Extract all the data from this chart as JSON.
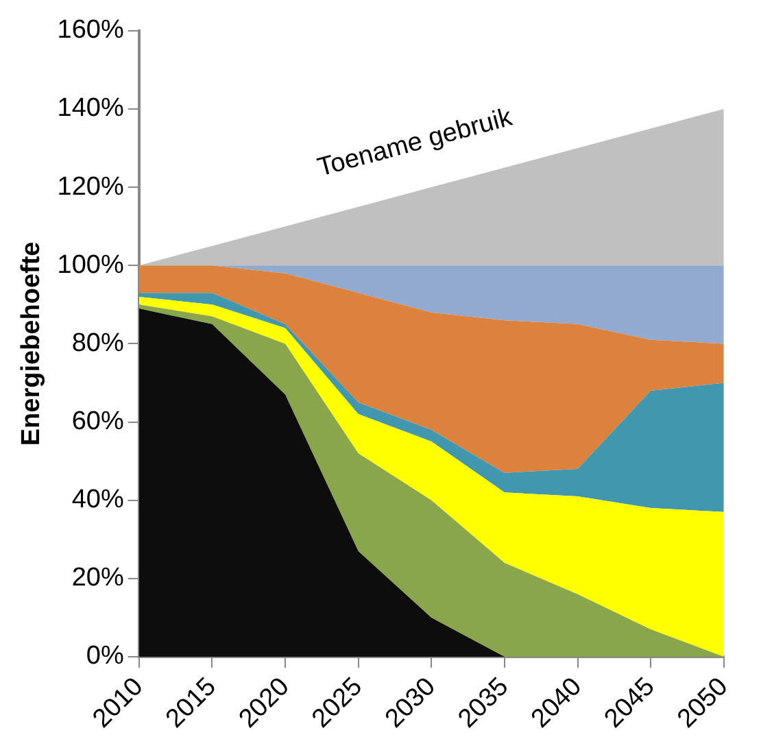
{
  "chart_data": {
    "type": "area",
    "stacked": true,
    "ylabel": "Energiebehoefte",
    "categories": [
      "2010",
      "2015",
      "2020",
      "2025",
      "2030",
      "2035",
      "2040",
      "2045",
      "2050"
    ],
    "series": [
      {
        "color": "#0d0d0d",
        "values": [
          89,
          85,
          67,
          27,
          10,
          0,
          0,
          0,
          0
        ]
      },
      {
        "color": "#8aa64c",
        "values": [
          1,
          2,
          13,
          25,
          30,
          24,
          16,
          7,
          0
        ]
      },
      {
        "color": "#ffff00",
        "values": [
          2,
          3,
          4,
          10,
          15,
          18,
          25,
          31,
          37
        ]
      },
      {
        "color": "#4198ae",
        "values": [
          1,
          3,
          1,
          3,
          3,
          5,
          7,
          30,
          33
        ]
      },
      {
        "color": "#dc823c",
        "values": [
          7,
          7,
          13,
          28,
          30,
          39,
          37,
          13,
          10
        ]
      },
      {
        "color": "#92a9d0",
        "values": [
          0,
          0,
          2,
          7,
          12,
          14,
          15,
          19,
          20
        ]
      },
      {
        "color": "#c0c0c0",
        "values": [
          0,
          5,
          10,
          15,
          20,
          25,
          30,
          35,
          40
        ]
      }
    ],
    "ylim": [
      0,
      160
    ],
    "yticks": [
      {
        "value": 0,
        "label": "0%"
      },
      {
        "value": 20,
        "label": "20%"
      },
      {
        "value": 40,
        "label": "40%"
      },
      {
        "value": 60,
        "label": "60%"
      },
      {
        "value": 80,
        "label": "80%"
      },
      {
        "value": 100,
        "label": "100%"
      },
      {
        "value": 120,
        "label": "120%"
      },
      {
        "value": 140,
        "label": "140%"
      },
      {
        "value": 160,
        "label": "160%"
      }
    ],
    "grid": false,
    "legend": false,
    "annotations": [
      "Toename gebruik"
    ]
  }
}
